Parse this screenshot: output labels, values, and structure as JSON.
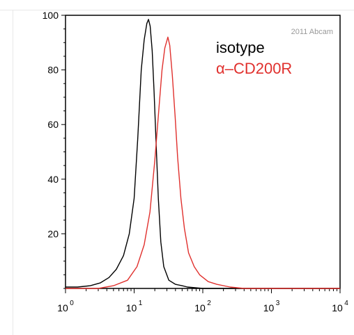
{
  "chart_data": {
    "type": "line",
    "x_scale": "log",
    "xlim": [
      1,
      10000
    ],
    "ylim": [
      0,
      100
    ],
    "y_ticks": [
      20,
      40,
      60,
      80,
      100
    ],
    "x_ticks": [
      {
        "value": 1,
        "base": "10",
        "exp": "0"
      },
      {
        "value": 10,
        "base": "10",
        "exp": "1"
      },
      {
        "value": 100,
        "base": "10",
        "exp": "2"
      },
      {
        "value": 1000,
        "base": "10",
        "exp": "3"
      },
      {
        "value": 10000,
        "base": "10",
        "exp": "4"
      }
    ],
    "copyright": "2011 Abcam",
    "grid": false,
    "legend_position": "top-right",
    "series": [
      {
        "name": "isotype",
        "color": "#000000",
        "points": [
          [
            1.0,
            0.5
          ],
          [
            1.5,
            0.5
          ],
          [
            2.3,
            1
          ],
          [
            3.2,
            2
          ],
          [
            4.3,
            4
          ],
          [
            5.5,
            7
          ],
          [
            7.0,
            12
          ],
          [
            8.5,
            20
          ],
          [
            10.0,
            33
          ],
          [
            11.3,
            55
          ],
          [
            12.7,
            80
          ],
          [
            14.0,
            91
          ],
          [
            15.3,
            97
          ],
          [
            16.2,
            98.5
          ],
          [
            17.1,
            96
          ],
          [
            18.3,
            87
          ],
          [
            19.5,
            72
          ],
          [
            21.0,
            52
          ],
          [
            22.5,
            33
          ],
          [
            24.5,
            17
          ],
          [
            27.0,
            8
          ],
          [
            32.0,
            3
          ],
          [
            40.0,
            1.5
          ],
          [
            50.0,
            1
          ],
          [
            60.0,
            0.5
          ],
          [
            100,
            0
          ],
          [
            10000,
            0
          ]
        ]
      },
      {
        "name": "α–CD200R",
        "color": "#e0302d",
        "points": [
          [
            1.0,
            0
          ],
          [
            3.0,
            0
          ],
          [
            5.0,
            1
          ],
          [
            8.0,
            3
          ],
          [
            11.0,
            8
          ],
          [
            14.0,
            16
          ],
          [
            17.0,
            28
          ],
          [
            20.0,
            47
          ],
          [
            23.0,
            66
          ],
          [
            25.5,
            80
          ],
          [
            28.0,
            88
          ],
          [
            31.0,
            92
          ],
          [
            33.0,
            89
          ],
          [
            36.0,
            78
          ],
          [
            39.5,
            63
          ],
          [
            43.0,
            48
          ],
          [
            48.0,
            33
          ],
          [
            54.0,
            22
          ],
          [
            62.0,
            13
          ],
          [
            75.0,
            8
          ],
          [
            90.0,
            5
          ],
          [
            120.0,
            2.5
          ],
          [
            160.0,
            1.5
          ],
          [
            250.0,
            0.5
          ],
          [
            400.0,
            0
          ],
          [
            10000,
            0
          ]
        ]
      }
    ]
  }
}
